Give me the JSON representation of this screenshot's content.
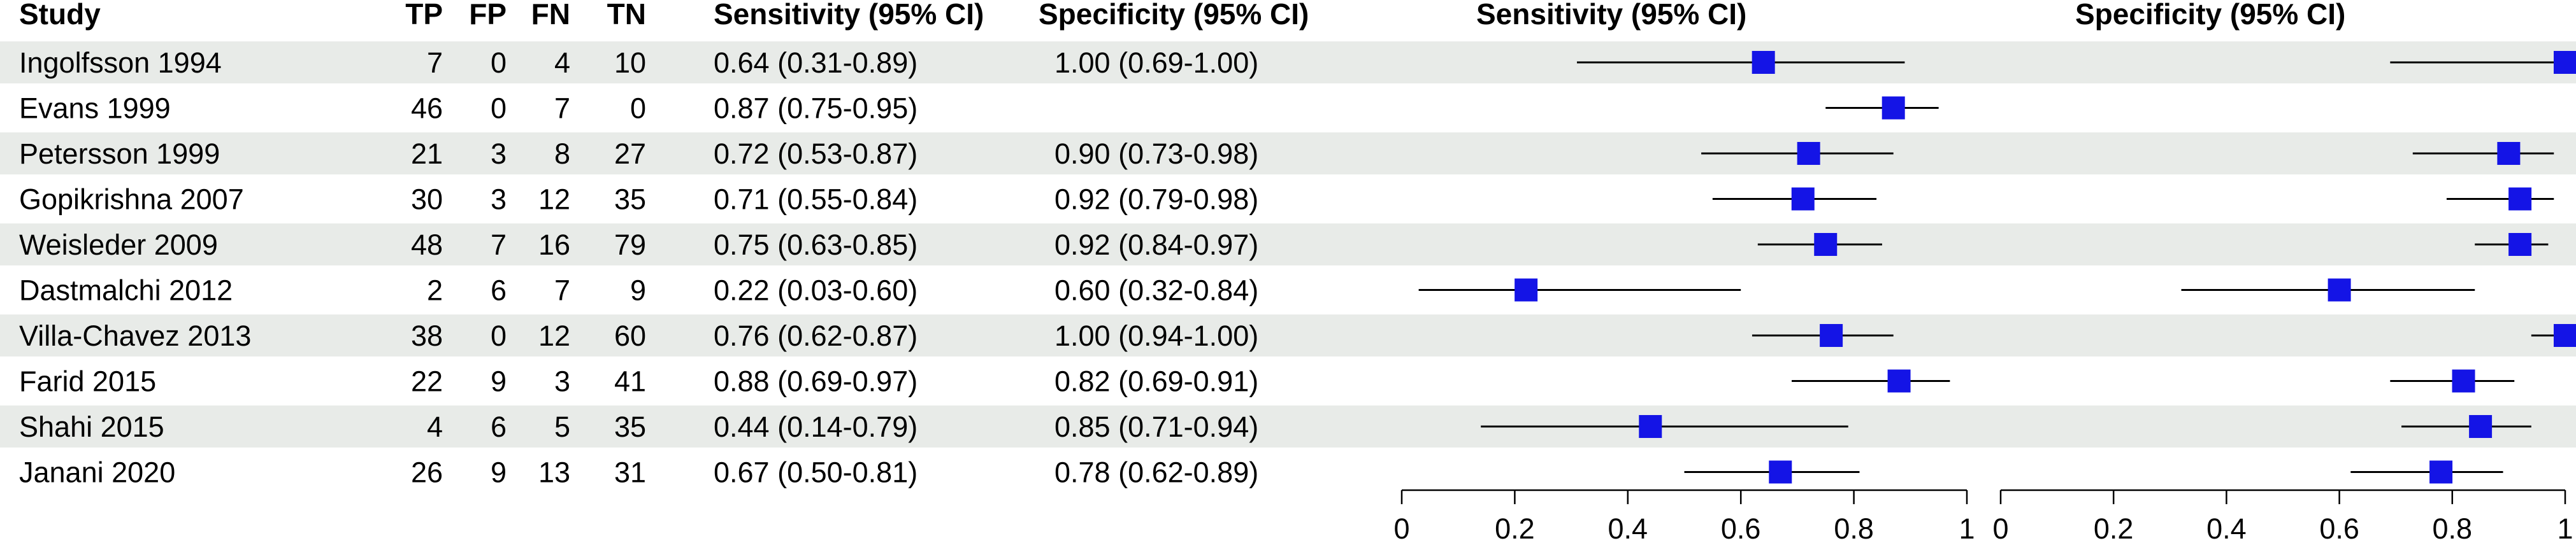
{
  "headers": {
    "study": "Study",
    "tp": "TP",
    "fp": "FP",
    "fn": "FN",
    "tn": "TN",
    "sens_ci": "Sensitivity (95% CI)",
    "spec_ci": "Specificity (95% CI)",
    "sens_plot": "Sensitivity (95% CI)",
    "spec_plot": "Specificity (95% CI)"
  },
  "colors": {
    "stripe": "#e8ebe8",
    "marker": "#1414e6",
    "line": "#000000"
  },
  "chart_data": {
    "type": "forest",
    "rows": [
      {
        "study": "Ingolfsson 1994",
        "tp": 7,
        "fp": 0,
        "fn": 4,
        "tn": 10,
        "sens_text": "0.64 (0.31-0.89)",
        "spec_text": "1.00 (0.69-1.00)",
        "sens": 0.64,
        "sens_lo": 0.31,
        "sens_hi": 0.89,
        "spec": 1.0,
        "spec_lo": 0.69,
        "spec_hi": 1.0
      },
      {
        "study": "Evans 1999",
        "tp": 46,
        "fp": 0,
        "fn": 7,
        "tn": 0,
        "sens_text": "0.87 (0.75-0.95)",
        "spec_text": "",
        "sens": 0.87,
        "sens_lo": 0.75,
        "sens_hi": 0.95,
        "spec": null,
        "spec_lo": null,
        "spec_hi": null
      },
      {
        "study": "Petersson 1999",
        "tp": 21,
        "fp": 3,
        "fn": 8,
        "tn": 27,
        "sens_text": "0.72 (0.53-0.87)",
        "spec_text": "0.90 (0.73-0.98)",
        "sens": 0.72,
        "sens_lo": 0.53,
        "sens_hi": 0.87,
        "spec": 0.9,
        "spec_lo": 0.73,
        "spec_hi": 0.98
      },
      {
        "study": "Gopikrishna 2007",
        "tp": 30,
        "fp": 3,
        "fn": 12,
        "tn": 35,
        "sens_text": "0.71 (0.55-0.84)",
        "spec_text": "0.92 (0.79-0.98)",
        "sens": 0.71,
        "sens_lo": 0.55,
        "sens_hi": 0.84,
        "spec": 0.92,
        "spec_lo": 0.79,
        "spec_hi": 0.98
      },
      {
        "study": "Weisleder 2009",
        "tp": 48,
        "fp": 7,
        "fn": 16,
        "tn": 79,
        "sens_text": "0.75 (0.63-0.85)",
        "spec_text": "0.92 (0.84-0.97)",
        "sens": 0.75,
        "sens_lo": 0.63,
        "sens_hi": 0.85,
        "spec": 0.92,
        "spec_lo": 0.84,
        "spec_hi": 0.97
      },
      {
        "study": "Dastmalchi 2012",
        "tp": 2,
        "fp": 6,
        "fn": 7,
        "tn": 9,
        "sens_text": "0.22 (0.03-0.60)",
        "spec_text": "0.60 (0.32-0.84)",
        "sens": 0.22,
        "sens_lo": 0.03,
        "sens_hi": 0.6,
        "spec": 0.6,
        "spec_lo": 0.32,
        "spec_hi": 0.84
      },
      {
        "study": "Villa-Chavez 2013",
        "tp": 38,
        "fp": 0,
        "fn": 12,
        "tn": 60,
        "sens_text": "0.76 (0.62-0.87)",
        "spec_text": "1.00 (0.94-1.00)",
        "sens": 0.76,
        "sens_lo": 0.62,
        "sens_hi": 0.87,
        "spec": 1.0,
        "spec_lo": 0.94,
        "spec_hi": 1.0
      },
      {
        "study": "Farid 2015",
        "tp": 22,
        "fp": 9,
        "fn": 3,
        "tn": 41,
        "sens_text": "0.88 (0.69-0.97)",
        "spec_text": "0.82 (0.69-0.91)",
        "sens": 0.88,
        "sens_lo": 0.69,
        "sens_hi": 0.97,
        "spec": 0.82,
        "spec_lo": 0.69,
        "spec_hi": 0.91
      },
      {
        "study": "Shahi 2015",
        "tp": 4,
        "fp": 6,
        "fn": 5,
        "tn": 35,
        "sens_text": "0.44 (0.14-0.79)",
        "spec_text": "0.85 (0.71-0.94)",
        "sens": 0.44,
        "sens_lo": 0.14,
        "sens_hi": 0.79,
        "spec": 0.85,
        "spec_lo": 0.71,
        "spec_hi": 0.94
      },
      {
        "study": "Janani 2020",
        "tp": 26,
        "fp": 9,
        "fn": 13,
        "tn": 31,
        "sens_text": "0.67 (0.50-0.81)",
        "spec_text": "0.78 (0.62-0.89)",
        "sens": 0.67,
        "sens_lo": 0.5,
        "sens_hi": 0.81,
        "spec": 0.78,
        "spec_lo": 0.62,
        "spec_hi": 0.89
      }
    ],
    "xlim": [
      0,
      1
    ],
    "ticks": [
      0,
      0.2,
      0.4,
      0.6,
      0.8,
      1
    ],
    "tick_labels": [
      "0",
      "0.2",
      "0.4",
      "0.6",
      "0.8",
      "1"
    ],
    "grid": false
  }
}
